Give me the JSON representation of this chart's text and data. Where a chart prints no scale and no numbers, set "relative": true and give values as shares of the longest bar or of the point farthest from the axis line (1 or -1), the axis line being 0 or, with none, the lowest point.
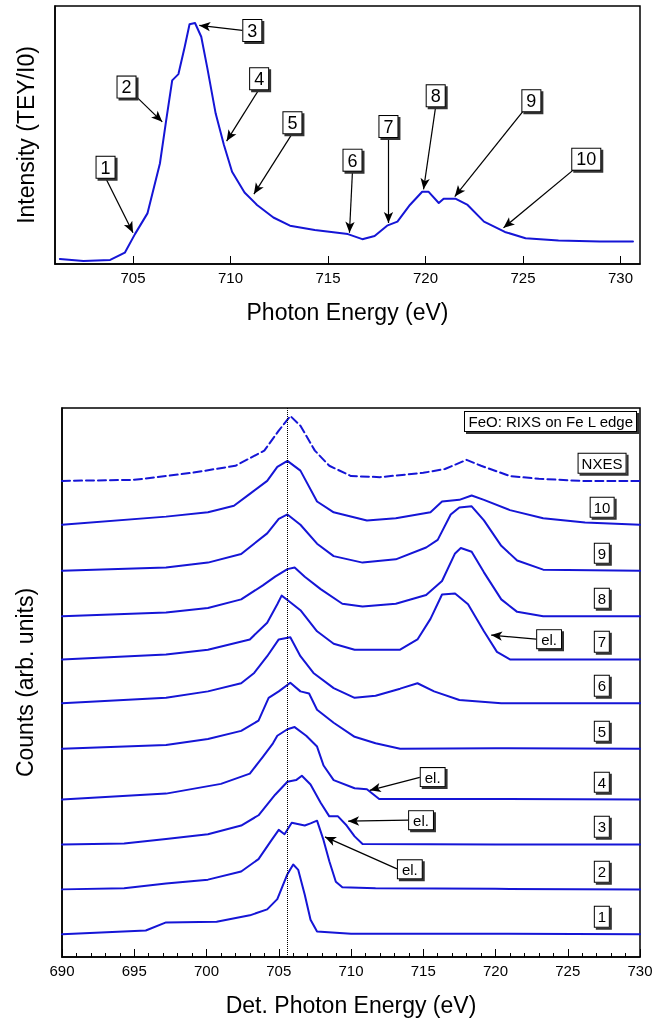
{
  "chart_data": [
    {
      "type": "line",
      "xlabel": "Photon Energy (eV)",
      "ylabel": "Intensity (TEY/I0)",
      "relative": true,
      "color": "#1515d6",
      "x": [
        701.25,
        702.46,
        703.83,
        704.58,
        705.1,
        705.74,
        706.38,
        706.69,
        707.01,
        707.33,
        707.65,
        707.9,
        708.18,
        708.5,
        708.81,
        709.24,
        709.66,
        710.08,
        710.72,
        711.36,
        712.2,
        713.05,
        714.32,
        716.02,
        716.76,
        717.39,
        718.03,
        718.56,
        719.2,
        719.83,
        720.15,
        720.68,
        720.93,
        721.53,
        722.16,
        723.0,
        724.07,
        725.13,
        726.82,
        728.94,
        730.64
      ],
      "values": [
        0.021,
        0.012,
        0.017,
        0.047,
        0.124,
        0.21,
        0.417,
        0.59,
        0.762,
        0.788,
        0.9,
        0.995,
        1.0,
        0.943,
        0.814,
        0.624,
        0.495,
        0.383,
        0.297,
        0.245,
        0.193,
        0.159,
        0.141,
        0.124,
        0.103,
        0.116,
        0.159,
        0.176,
        0.245,
        0.3,
        0.3,
        0.253,
        0.271,
        0.271,
        0.245,
        0.176,
        0.133,
        0.107,
        0.098,
        0.093,
        0.093
      ],
      "xlim": [
        701,
        731
      ],
      "xticks": [
        705,
        710,
        715,
        720,
        725,
        730
      ],
      "annotations": [
        {
          "text": "1",
          "x": 705.0,
          "y": 0.13
        },
        {
          "text": "2",
          "x": 706.5,
          "y": 0.59
        },
        {
          "text": "3",
          "x": 708.4,
          "y": 0.99
        },
        {
          "text": "4",
          "x": 709.8,
          "y": 0.51
        },
        {
          "text": "5",
          "x": 711.2,
          "y": 0.29
        },
        {
          "text": "6",
          "x": 716.1,
          "y": 0.13
        },
        {
          "text": "7",
          "x": 718.1,
          "y": 0.17
        },
        {
          "text": "8",
          "x": 719.9,
          "y": 0.31
        },
        {
          "text": "9",
          "x": 721.5,
          "y": 0.28
        },
        {
          "text": "10",
          "x": 724.0,
          "y": 0.15
        }
      ]
    },
    {
      "type": "line",
      "xlabel": "Det. Photon Energy (eV)",
      "ylabel": "Counts (arb. units)",
      "relative": true,
      "xlim": [
        690,
        730
      ],
      "xticks": [
        690,
        {
          "value": 691,
          "label": null
        },
        {
          "value": 692,
          "label": null
        },
        {
          "value": 693,
          "label": null
        },
        {
          "value": 694,
          "label": null
        },
        695,
        {
          "value": 696,
          "label": null
        },
        {
          "value": 697,
          "label": null
        },
        {
          "value": 698,
          "label": null
        },
        {
          "value": 699,
          "label": null
        },
        700,
        {
          "value": 701,
          "label": null
        },
        {
          "value": 702,
          "label": null
        },
        {
          "value": 703,
          "label": null
        },
        {
          "value": 704,
          "label": null
        },
        705,
        {
          "value": 706,
          "label": null
        },
        {
          "value": 707,
          "label": null
        },
        {
          "value": 708,
          "label": null
        },
        {
          "value": 709,
          "label": null
        },
        710,
        {
          "value": 711,
          "label": null
        },
        {
          "value": 712,
          "label": null
        },
        {
          "value": 713,
          "label": null
        },
        {
          "value": 714,
          "label": null
        },
        715,
        {
          "value": 716,
          "label": null
        },
        {
          "value": 717,
          "label": null
        },
        {
          "value": 718,
          "label": null
        },
        {
          "value": 719,
          "label": null
        },
        720,
        {
          "value": 721,
          "label": null
        },
        {
          "value": 722,
          "label": null
        },
        {
          "value": 723,
          "label": null
        },
        {
          "value": 724,
          "label": null
        },
        725,
        {
          "value": 726,
          "label": null
        },
        {
          "value": 727,
          "label": null
        },
        {
          "value": 728,
          "label": null
        },
        {
          "value": 729,
          "label": null
        },
        730
      ],
      "ref_lines": [
        {
          "axis": "x",
          "value": 705.6,
          "color": "#000000",
          "line_style": "dotted"
        }
      ],
      "annotations": [
        "FeO: RIXS on Fe L edge",
        {
          "text": "el.",
          "x": 719.7,
          "y": 0.595
        },
        {
          "text": "el.",
          "x": 711.3,
          "y": 0.308
        },
        {
          "text": "el.",
          "x": 709.8,
          "y": 0.251
        },
        {
          "text": "el.",
          "x": 708.2,
          "y": 0.222
        }
      ],
      "series": [
        {
          "name": "NXES",
          "color": "#1515d6",
          "line_style": "dashed",
          "x": [
            690,
            695,
            699,
            702,
            704,
            705,
            705.8,
            706.5,
            707.5,
            708.5,
            710,
            712,
            715,
            716.5,
            718,
            719,
            721,
            723,
            726,
            730
          ],
          "values": [
            0.88,
            0.882,
            0.895,
            0.908,
            0.936,
            0.973,
            1.0,
            0.982,
            0.936,
            0.908,
            0.889,
            0.887,
            0.895,
            0.902,
            0.919,
            0.908,
            0.889,
            0.884,
            0.88,
            0.88
          ]
        },
        {
          "name": "10",
          "color": "#1515d6",
          "x": [
            690,
            697.2,
            700.1,
            701.9,
            703.0,
            704.2,
            704.9,
            705.6,
            706.5,
            707.65,
            708.8,
            711.1,
            713.1,
            715.5,
            716.3,
            717.5,
            718.35,
            719.2,
            721.0,
            723.3,
            726.2,
            730
          ],
          "values": [
            0.799,
            0.814,
            0.822,
            0.834,
            0.856,
            0.88,
            0.906,
            0.917,
            0.899,
            0.842,
            0.822,
            0.807,
            0.811,
            0.822,
            0.842,
            0.845,
            0.853,
            0.845,
            0.826,
            0.811,
            0.803,
            0.799
          ]
        },
        {
          "name": "9",
          "color": "#1515d6",
          "x": [
            690,
            697.2,
            700.1,
            702.4,
            704.2,
            705.0,
            705.6,
            706.5,
            707.65,
            708.8,
            710.8,
            713.1,
            715.2,
            716.0,
            716.9,
            717.5,
            718.35,
            719.2,
            720.4,
            721.5,
            723.3,
            730
          ],
          "values": [
            0.714,
            0.72,
            0.729,
            0.745,
            0.783,
            0.81,
            0.818,
            0.799,
            0.764,
            0.741,
            0.729,
            0.735,
            0.757,
            0.771,
            0.818,
            0.831,
            0.833,
            0.807,
            0.76,
            0.733,
            0.716,
            0.714
          ]
        },
        {
          "name": "8",
          "color": "#1515d6",
          "x": [
            690,
            697.2,
            700.1,
            702.4,
            703.9,
            704.75,
            705.6,
            706.1,
            706.8,
            707.9,
            709.4,
            710.8,
            713.1,
            715.2,
            716.3,
            717.2,
            717.6,
            718.35,
            719.2,
            720.4,
            721.5,
            723.3,
            730
          ],
          "values": [
            0.63,
            0.637,
            0.645,
            0.661,
            0.687,
            0.703,
            0.717,
            0.72,
            0.703,
            0.68,
            0.653,
            0.648,
            0.653,
            0.669,
            0.695,
            0.746,
            0.756,
            0.749,
            0.711,
            0.661,
            0.638,
            0.63,
            0.63
          ]
        },
        {
          "name": "7",
          "color": "#1515d6",
          "x": [
            690,
            697.2,
            700.1,
            703.0,
            704.2,
            704.9,
            705.2,
            705.6,
            706.5,
            707.65,
            708.8,
            710.25,
            711.7,
            713.4,
            714.6,
            715.5,
            716.3,
            717.2,
            718.1,
            719.2,
            720.1,
            721.0,
            730
          ],
          "values": [
            0.55,
            0.559,
            0.568,
            0.587,
            0.618,
            0.652,
            0.668,
            0.66,
            0.641,
            0.602,
            0.579,
            0.568,
            0.568,
            0.568,
            0.587,
            0.625,
            0.67,
            0.672,
            0.652,
            0.602,
            0.564,
            0.55,
            0.55
          ]
        },
        {
          "name": "6",
          "color": "#1515d6",
          "x": [
            690,
            697.2,
            700.1,
            702.4,
            703.3,
            704.2,
            705.0,
            705.8,
            706.5,
            707.4,
            708.8,
            710.25,
            711.7,
            713.4,
            714.6,
            715.75,
            717.5,
            720.4,
            730
          ],
          "values": [
            0.469,
            0.479,
            0.491,
            0.506,
            0.525,
            0.556,
            0.587,
            0.591,
            0.556,
            0.525,
            0.497,
            0.479,
            0.483,
            0.496,
            0.506,
            0.491,
            0.475,
            0.469,
            0.469
          ]
        },
        {
          "name": "5",
          "color": "#1515d6",
          "x": [
            690,
            697.2,
            700.1,
            702.4,
            703.6,
            704.3,
            705.0,
            705.8,
            706.5,
            707.1,
            707.65,
            708.8,
            710.25,
            711.7,
            713.4,
            720,
            730
          ],
          "values": [
            0.385,
            0.392,
            0.403,
            0.418,
            0.437,
            0.479,
            0.491,
            0.507,
            0.491,
            0.487,
            0.457,
            0.433,
            0.407,
            0.395,
            0.385,
            0.386,
            0.385
          ]
        },
        {
          "name": "4",
          "color": "#1515d6",
          "x": [
            690,
            697.2,
            701.0,
            703.0,
            703.9,
            704.6,
            704.9,
            705.6,
            706.1,
            706.9,
            707.65,
            708.1,
            708.8,
            710.25,
            711.1,
            711.95,
            720,
            730
          ],
          "values": [
            0.291,
            0.302,
            0.32,
            0.339,
            0.37,
            0.395,
            0.409,
            0.421,
            0.425,
            0.409,
            0.389,
            0.354,
            0.327,
            0.312,
            0.31,
            0.292,
            0.292,
            0.291
          ]
        },
        {
          "name": "3",
          "color": "#1515d6",
          "x": [
            690,
            694.3,
            697.2,
            700.1,
            702.4,
            703.6,
            704.75,
            705.6,
            706.2,
            706.6,
            707.2,
            707.9,
            708.5,
            709.1,
            709.7,
            710.25,
            710.8,
            720,
            730
          ],
          "values": [
            0.208,
            0.21,
            0.218,
            0.227,
            0.243,
            0.262,
            0.3,
            0.324,
            0.327,
            0.335,
            0.319,
            0.285,
            0.26,
            0.26,
            0.243,
            0.223,
            0.209,
            0.208,
            0.208
          ]
        },
        {
          "name": "2",
          "color": "#1515d6",
          "x": [
            690,
            694.3,
            697.2,
            700.1,
            702.4,
            703.6,
            704.5,
            705.0,
            705.4,
            705.9,
            706.8,
            707.2,
            707.65,
            708.1,
            708.5,
            708.95,
            709.4,
            711.7,
            720,
            730
          ],
          "values": [
            0.125,
            0.127,
            0.136,
            0.143,
            0.158,
            0.181,
            0.216,
            0.235,
            0.227,
            0.248,
            0.243,
            0.247,
            0.252,
            0.216,
            0.177,
            0.139,
            0.129,
            0.127,
            0.126,
            0.125
          ]
        },
        {
          "name": "1",
          "color": "#1515d6",
          "x": [
            690,
            695.8,
            697.2,
            700.7,
            703.0,
            704.2,
            704.9,
            705.6,
            706.0,
            706.35,
            706.8,
            707.2,
            707.65,
            710,
            720,
            730
          ],
          "values": [
            0.042,
            0.049,
            0.064,
            0.065,
            0.077,
            0.088,
            0.107,
            0.153,
            0.171,
            0.161,
            0.115,
            0.069,
            0.047,
            0.043,
            0.043,
            0.042
          ]
        }
      ]
    }
  ]
}
